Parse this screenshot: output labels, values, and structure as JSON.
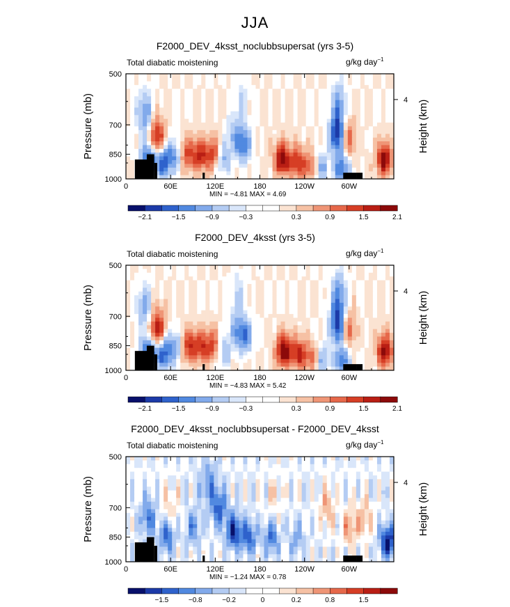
{
  "figure_title": "JJA",
  "colors": {
    "blue_ramp": [
      "#08106b",
      "#1c3aa8",
      "#2f62cc",
      "#5189e0",
      "#82aaeb",
      "#b4ccf3",
      "#d9e6fa"
    ],
    "red_ramp": [
      "#fbe3d2",
      "#f6c1a4",
      "#ef9576",
      "#e6684a",
      "#d63e25",
      "#b91e14",
      "#8c0a0a"
    ],
    "orography": "#000000"
  },
  "chart_data": [
    {
      "type": "heatmap",
      "title": "F2000_DEV_4ksst_noclubbsupersat (yrs 3-5)",
      "left_label": "Total diabatic moistening",
      "right_label": "g/kg day",
      "right_label_sup": "−1",
      "ylabel": "Pressure (mb)",
      "ylabel_right": "Height (km)",
      "yticks": [
        "500",
        "700",
        "850",
        "1000"
      ],
      "yticks_right": [
        "4"
      ],
      "xticks": [
        "0",
        "60E",
        "120E",
        "180",
        "120W",
        "60W"
      ],
      "stats": {
        "min_label": "MIN =",
        "min": "−4.81",
        "max_label": "MAX =",
        "max": "4.69"
      },
      "colorbar_labels": [
        "−2.1",
        "−1.5",
        "−0.9",
        "−0.3",
        "0.3",
        "0.9",
        "1.5",
        "2.1"
      ],
      "features": [
        {
          "lon": 25,
          "p": 650,
          "v": -1.2
        },
        {
          "lon": 30,
          "p": 880,
          "v": -1.9
        },
        {
          "lon": 42,
          "p": 760,
          "v": 1.8
        },
        {
          "lon": 50,
          "p": 900,
          "v": -1.8
        },
        {
          "lon": 65,
          "p": 860,
          "v": -1.1
        },
        {
          "lon": 82,
          "p": 850,
          "v": 1.3
        },
        {
          "lon": 100,
          "p": 860,
          "v": 1.6
        },
        {
          "lon": 118,
          "p": 850,
          "v": 1.4
        },
        {
          "lon": 130,
          "p": 880,
          "v": -1.1
        },
        {
          "lon": 145,
          "p": 750,
          "v": -0.7
        },
        {
          "lon": 158,
          "p": 800,
          "v": -1.5
        },
        {
          "lon": 155,
          "p": 600,
          "v": -0.5
        },
        {
          "lon": 210,
          "p": 880,
          "v": 2.3
        },
        {
          "lon": 230,
          "p": 900,
          "v": 1.6
        },
        {
          "lon": 248,
          "p": 920,
          "v": 1.1
        },
        {
          "lon": 262,
          "p": 930,
          "v": -1.0
        },
        {
          "lon": 284,
          "p": 750,
          "v": -2.2
        },
        {
          "lon": 286,
          "p": 620,
          "v": -1.1
        },
        {
          "lon": 290,
          "p": 940,
          "v": -1.6
        },
        {
          "lon": 298,
          "p": 760,
          "v": 1.2
        },
        {
          "lon": 347,
          "p": 880,
          "v": 2.2
        }
      ],
      "background": 0.15
    },
    {
      "type": "heatmap",
      "title": "F2000_DEV_4ksst (yrs 3-5)",
      "left_label": "Total diabatic moistening",
      "right_label": "g/kg day",
      "right_label_sup": "−1",
      "ylabel": "Pressure (mb)",
      "ylabel_right": "Height (km)",
      "yticks": [
        "500",
        "700",
        "850",
        "1000"
      ],
      "yticks_right": [
        "4"
      ],
      "xticks": [
        "0",
        "60E",
        "120E",
        "180",
        "120W",
        "60W"
      ],
      "stats": {
        "min_label": "MIN =",
        "min": "−4.83",
        "max_label": "MAX =",
        "max": "5.42"
      },
      "colorbar_labels": [
        "−2.1",
        "−1.5",
        "−0.9",
        "−0.3",
        "0.3",
        "0.9",
        "1.5",
        "2.1"
      ],
      "features": [
        {
          "lon": 25,
          "p": 660,
          "v": -1.0
        },
        {
          "lon": 30,
          "p": 890,
          "v": -1.9
        },
        {
          "lon": 42,
          "p": 760,
          "v": 1.9
        },
        {
          "lon": 50,
          "p": 900,
          "v": -1.7
        },
        {
          "lon": 65,
          "p": 860,
          "v": -1.0
        },
        {
          "lon": 85,
          "p": 850,
          "v": 1.5
        },
        {
          "lon": 102,
          "p": 860,
          "v": 1.4
        },
        {
          "lon": 118,
          "p": 850,
          "v": 1.3
        },
        {
          "lon": 130,
          "p": 880,
          "v": -1.0
        },
        {
          "lon": 148,
          "p": 760,
          "v": -0.8
        },
        {
          "lon": 160,
          "p": 800,
          "v": -1.4
        },
        {
          "lon": 150,
          "p": 600,
          "v": -0.5
        },
        {
          "lon": 212,
          "p": 880,
          "v": 2.4
        },
        {
          "lon": 232,
          "p": 900,
          "v": 1.7
        },
        {
          "lon": 250,
          "p": 920,
          "v": 1.0
        },
        {
          "lon": 264,
          "p": 930,
          "v": -1.0
        },
        {
          "lon": 285,
          "p": 740,
          "v": -2.2
        },
        {
          "lon": 286,
          "p": 610,
          "v": -1.2
        },
        {
          "lon": 290,
          "p": 940,
          "v": -1.5
        },
        {
          "lon": 298,
          "p": 760,
          "v": 1.2
        },
        {
          "lon": 348,
          "p": 880,
          "v": 2.2
        }
      ],
      "background": 0.15
    },
    {
      "type": "heatmap",
      "title": "F2000_DEV_4ksst_noclubbsupersat - F2000_DEV_4ksst",
      "left_label": "Total diabatic moistening",
      "right_label": "g/kg day",
      "right_label_sup": "−1",
      "ylabel": "Pressure (mb)",
      "ylabel_right": "Height (km)",
      "yticks": [
        "500",
        "700",
        "850",
        "1000"
      ],
      "yticks_right": [
        "4"
      ],
      "xticks": [
        "0",
        "60E",
        "120E",
        "180",
        "120W",
        "60W"
      ],
      "stats": {
        "min_label": "MIN =",
        "min": "−1.24",
        "max_label": "MAX =",
        "max": "0.78"
      },
      "colorbar_labels": [
        "−1.5",
        "−0.8",
        "−0.2",
        "0",
        "0.2",
        "0.8",
        "1.5"
      ],
      "features": [
        {
          "lon": 30,
          "p": 750,
          "v": -0.5
        },
        {
          "lon": 55,
          "p": 850,
          "v": -0.6
        },
        {
          "lon": 90,
          "p": 800,
          "v": -0.4
        },
        {
          "lon": 125,
          "p": 700,
          "v": -0.6
        },
        {
          "lon": 145,
          "p": 820,
          "v": -0.8
        },
        {
          "lon": 165,
          "p": 850,
          "v": -0.6
        },
        {
          "lon": 195,
          "p": 860,
          "v": -0.5
        },
        {
          "lon": 230,
          "p": 860,
          "v": -0.3
        },
        {
          "lon": 110,
          "p": 600,
          "v": -0.4
        },
        {
          "lon": 270,
          "p": 700,
          "v": 0.3
        },
        {
          "lon": 300,
          "p": 800,
          "v": 0.4
        },
        {
          "lon": 320,
          "p": 760,
          "v": 0.3
        },
        {
          "lon": 352,
          "p": 880,
          "v": -0.9
        },
        {
          "lon": 60,
          "p": 700,
          "v": 0.2
        },
        {
          "lon": 200,
          "p": 650,
          "v": 0.15
        }
      ],
      "background": -0.05
    }
  ]
}
